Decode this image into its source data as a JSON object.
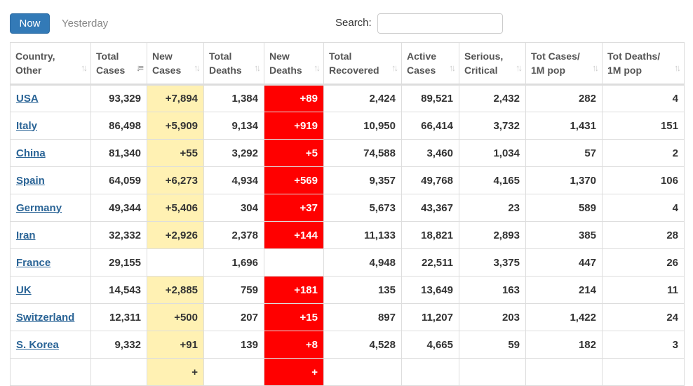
{
  "toolbar": {
    "now_label": "Now",
    "yesterday_label": "Yesterday",
    "search_label": "Search:",
    "search_value": ""
  },
  "colors": {
    "now_button": "#337ab7",
    "new_cases_highlight": "#fff1b3",
    "new_deaths_highlight": "#ff0000",
    "link": "#2a6496"
  },
  "table": {
    "headers": [
      {
        "line1": "Country,",
        "line2": "Other",
        "sort_icon": "sort-both-icon"
      },
      {
        "line1": "Total",
        "line2": "Cases",
        "sort_icon": "sort-descending-icon"
      },
      {
        "line1": "New",
        "line2": "Cases",
        "sort_icon": "sort-both-icon"
      },
      {
        "line1": "Total",
        "line2": "Deaths",
        "sort_icon": "sort-both-icon"
      },
      {
        "line1": "New",
        "line2": "Deaths",
        "sort_icon": "sort-both-icon"
      },
      {
        "line1": "Total",
        "line2": "Recovered",
        "sort_icon": "sort-both-icon"
      },
      {
        "line1": "Active",
        "line2": "Cases",
        "sort_icon": "sort-both-icon"
      },
      {
        "line1": "Serious,",
        "line2": "Critical",
        "sort_icon": "sort-both-icon"
      },
      {
        "line1": "Tot Cases/",
        "line2": "1M pop",
        "sort_icon": "sort-both-icon"
      },
      {
        "line1": "Tot Deaths/",
        "line2": "1M pop",
        "sort_icon": "sort-both-icon"
      }
    ],
    "rows": [
      {
        "country": "USA",
        "total_cases": "93,329",
        "new_cases": "+7,894",
        "total_deaths": "1,384",
        "new_deaths": "+89",
        "total_recovered": "2,424",
        "active_cases": "89,521",
        "serious_critical": "2,432",
        "cases_per_1m": "282",
        "deaths_per_1m": "4"
      },
      {
        "country": "Italy",
        "total_cases": "86,498",
        "new_cases": "+5,909",
        "total_deaths": "9,134",
        "new_deaths": "+919",
        "total_recovered": "10,950",
        "active_cases": "66,414",
        "serious_critical": "3,732",
        "cases_per_1m": "1,431",
        "deaths_per_1m": "151"
      },
      {
        "country": "China",
        "total_cases": "81,340",
        "new_cases": "+55",
        "total_deaths": "3,292",
        "new_deaths": "+5",
        "total_recovered": "74,588",
        "active_cases": "3,460",
        "serious_critical": "1,034",
        "cases_per_1m": "57",
        "deaths_per_1m": "2"
      },
      {
        "country": "Spain",
        "total_cases": "64,059",
        "new_cases": "+6,273",
        "total_deaths": "4,934",
        "new_deaths": "+569",
        "total_recovered": "9,357",
        "active_cases": "49,768",
        "serious_critical": "4,165",
        "cases_per_1m": "1,370",
        "deaths_per_1m": "106"
      },
      {
        "country": "Germany",
        "total_cases": "49,344",
        "new_cases": "+5,406",
        "total_deaths": "304",
        "new_deaths": "+37",
        "total_recovered": "5,673",
        "active_cases": "43,367",
        "serious_critical": "23",
        "cases_per_1m": "589",
        "deaths_per_1m": "4"
      },
      {
        "country": "Iran",
        "total_cases": "32,332",
        "new_cases": "+2,926",
        "total_deaths": "2,378",
        "new_deaths": "+144",
        "total_recovered": "11,133",
        "active_cases": "18,821",
        "serious_critical": "2,893",
        "cases_per_1m": "385",
        "deaths_per_1m": "28"
      },
      {
        "country": "France",
        "total_cases": "29,155",
        "new_cases": "",
        "total_deaths": "1,696",
        "new_deaths": "",
        "total_recovered": "4,948",
        "active_cases": "22,511",
        "serious_critical": "3,375",
        "cases_per_1m": "447",
        "deaths_per_1m": "26"
      },
      {
        "country": "UK",
        "total_cases": "14,543",
        "new_cases": "+2,885",
        "total_deaths": "759",
        "new_deaths": "+181",
        "total_recovered": "135",
        "active_cases": "13,649",
        "serious_critical": "163",
        "cases_per_1m": "214",
        "deaths_per_1m": "11"
      },
      {
        "country": "Switzerland",
        "total_cases": "12,311",
        "new_cases": "+500",
        "total_deaths": "207",
        "new_deaths": "+15",
        "total_recovered": "897",
        "active_cases": "11,207",
        "serious_critical": "203",
        "cases_per_1m": "1,422",
        "deaths_per_1m": "24"
      },
      {
        "country": "S. Korea",
        "total_cases": "9,332",
        "new_cases": "+91",
        "total_deaths": "139",
        "new_deaths": "+8",
        "total_recovered": "4,528",
        "active_cases": "4,665",
        "serious_critical": "59",
        "cases_per_1m": "182",
        "deaths_per_1m": "3"
      },
      {
        "country": "",
        "total_cases": "",
        "new_cases": "+",
        "total_deaths": "",
        "new_deaths": "+",
        "total_recovered": "",
        "active_cases": "",
        "serious_critical": "",
        "cases_per_1m": "",
        "deaths_per_1m": ""
      }
    ]
  }
}
